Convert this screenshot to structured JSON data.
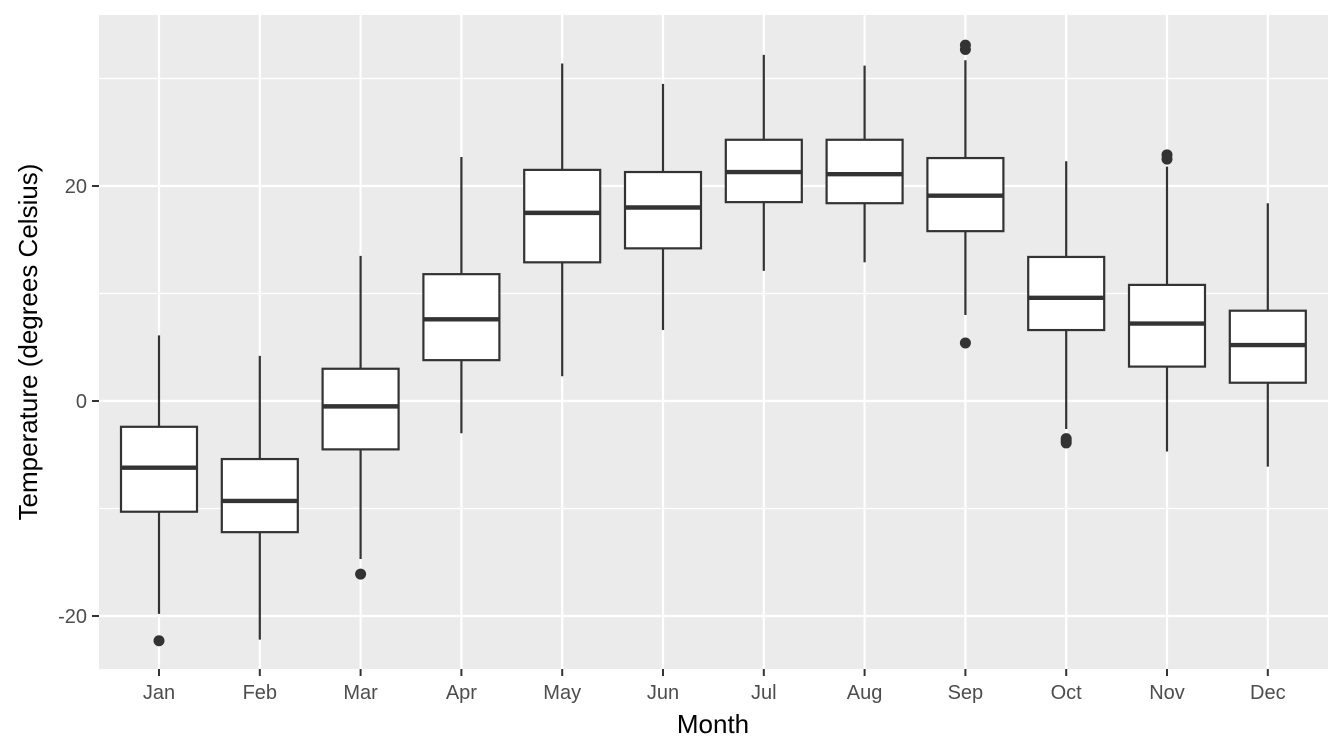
{
  "chart_data": {
    "type": "boxplot",
    "xlabel": "Month",
    "ylabel": "Temperature (degrees Celsius)",
    "ylim": [
      -25,
      36
    ],
    "y_ticks": [
      -20,
      0,
      20
    ],
    "y_tick_labels": [
      "-20",
      "0",
      "20"
    ],
    "grid": true,
    "categories": [
      "Jan",
      "Feb",
      "Mar",
      "Apr",
      "May",
      "Jun",
      "Jul",
      "Aug",
      "Sep",
      "Oct",
      "Nov",
      "Dec"
    ],
    "boxes": [
      {
        "month": "Jan",
        "whisker_low": -19.8,
        "q1": -10.3,
        "median": -6.2,
        "q3": -2.4,
        "whisker_high": 6.1,
        "outliers": [
          -22.3
        ]
      },
      {
        "month": "Feb",
        "whisker_low": -22.2,
        "q1": -12.2,
        "median": -9.3,
        "q3": -5.4,
        "whisker_high": 4.2,
        "outliers": []
      },
      {
        "month": "Mar",
        "whisker_low": -14.7,
        "q1": -4.5,
        "median": -0.5,
        "q3": 3.0,
        "whisker_high": 13.5,
        "outliers": [
          -16.1
        ]
      },
      {
        "month": "Apr",
        "whisker_low": -3.0,
        "q1": 3.8,
        "median": 7.6,
        "q3": 11.8,
        "whisker_high": 22.7,
        "outliers": []
      },
      {
        "month": "May",
        "whisker_low": 2.3,
        "q1": 12.9,
        "median": 17.5,
        "q3": 21.5,
        "whisker_high": 31.4,
        "outliers": []
      },
      {
        "month": "Jun",
        "whisker_low": 6.6,
        "q1": 14.2,
        "median": 18.0,
        "q3": 21.3,
        "whisker_high": 29.5,
        "outliers": []
      },
      {
        "month": "Jul",
        "whisker_low": 12.1,
        "q1": 18.5,
        "median": 21.3,
        "q3": 24.3,
        "whisker_high": 32.2,
        "outliers": []
      },
      {
        "month": "Aug",
        "whisker_low": 12.9,
        "q1": 18.4,
        "median": 21.1,
        "q3": 24.3,
        "whisker_high": 31.2,
        "outliers": []
      },
      {
        "month": "Sep",
        "whisker_low": 8.0,
        "q1": 15.8,
        "median": 19.1,
        "q3": 22.6,
        "whisker_high": 31.7,
        "outliers": [
          5.4,
          32.7,
          33.1
        ]
      },
      {
        "month": "Oct",
        "whisker_low": -2.6,
        "q1": 6.6,
        "median": 9.6,
        "q3": 13.4,
        "whisker_high": 22.3,
        "outliers": [
          -3.7,
          -3.9,
          -3.5
        ]
      },
      {
        "month": "Nov",
        "whisker_low": -4.7,
        "q1": 3.2,
        "median": 7.2,
        "q3": 10.8,
        "whisker_high": 21.8,
        "outliers": [
          22.5,
          22.9
        ]
      },
      {
        "month": "Dec",
        "whisker_low": -6.1,
        "q1": 1.7,
        "median": 5.2,
        "q3": 8.4,
        "whisker_high": 18.4,
        "outliers": []
      }
    ],
    "colors": {
      "panel_background": "#ebebeb",
      "grid_major": "#ffffff",
      "box_fill": "#ffffff",
      "box_stroke": "#333333",
      "tick_text": "#4d4d4d",
      "title_text": "#000000"
    }
  }
}
